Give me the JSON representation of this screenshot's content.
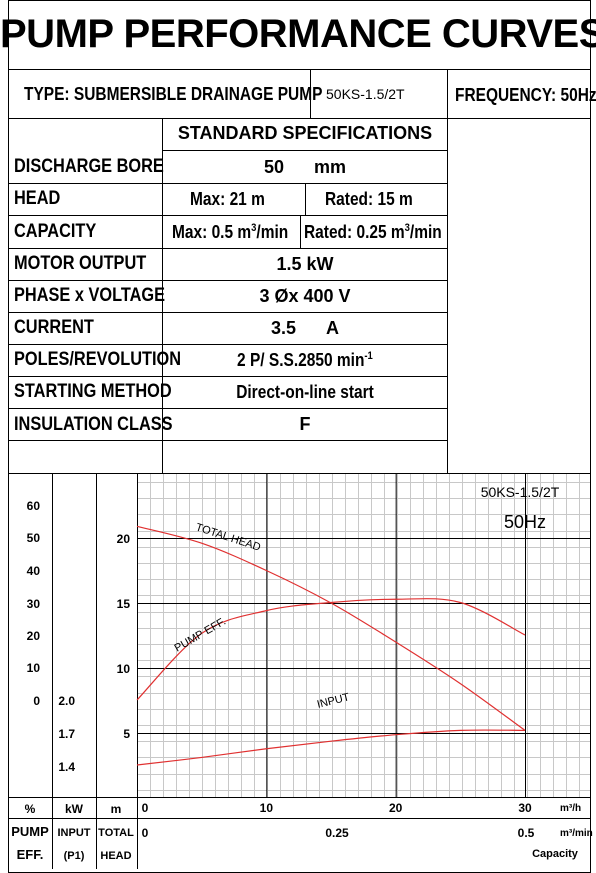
{
  "title": "PUMP PERFORMANCE CURVES",
  "type_label": "TYPE: SUBMERSIBLE  DRAINAGE  PUMP",
  "model": "50KS-1.5/2T",
  "frequency": "FREQUENCY: 50Hz",
  "spec_header": "STANDARD SPECIFICATIONS",
  "specs": {
    "discharge_bore": {
      "label": "DISCHARGE BORE",
      "value": "50",
      "unit": "mm"
    },
    "head": {
      "label": "HEAD",
      "max": "Max: 21 m",
      "rated": "Rated: 15 m"
    },
    "capacity": {
      "label": "CAPACITY",
      "max": "Max: 0.5 m",
      "max_sup": "3",
      "max_suffix": "/min",
      "rated": "Rated: 0.25 m",
      "rated_sup": "3",
      "rated_suffix": "/min"
    },
    "motor_output": {
      "label": "MOTOR OUTPUT",
      "value": "1.5  kW"
    },
    "phase_voltage": {
      "label": "PHASE x VOLTAGE",
      "value": "3 Øx 400  V"
    },
    "current": {
      "label": "CURRENT",
      "value": "3.5",
      "unit": "A"
    },
    "poles": {
      "label": "POLES/REVOLUTION",
      "value": "2 P/ S.S.2850 min",
      "sup": "-1"
    },
    "starting": {
      "label": "STARTING METHOD",
      "value": "Direct-on-line start"
    },
    "insulation": {
      "label": "INSULATION CLASS",
      "value": "F"
    }
  },
  "chart_data": {
    "type": "line",
    "model_label": "50KS-1.5/2T",
    "freq_label": "50Hz",
    "x_ticks_m3h": [
      "0",
      "10",
      "20",
      "30"
    ],
    "x_unit_m3h": "m³/h",
    "x_ticks_m3min": [
      "0",
      "0.25",
      "0.5"
    ],
    "x_unit_m3min": "m³/min",
    "x_axis_caption": "Capacity",
    "eff_ticks": [
      "60",
      "50",
      "40",
      "30",
      "20",
      "10",
      "0"
    ],
    "input_ticks": [
      "2.0",
      "1.7",
      "1.4"
    ],
    "head_ticks": [
      "20",
      "15",
      "10",
      "5"
    ],
    "col_units": {
      "eff": "%",
      "input": "kW",
      "head": "m"
    },
    "col_names": {
      "eff_line1": "PUMP",
      "eff_line2": "EFF.",
      "input_line1": "INPUT",
      "input_line2": "(P1)",
      "head_line1": "TOTAL",
      "head_line2": "HEAD"
    },
    "series": [
      {
        "name": "TOTAL HEAD",
        "axis": "head_m",
        "color": "#e03030",
        "x": [
          0,
          5,
          10,
          15,
          20,
          25,
          30
        ],
        "y": [
          20.9,
          19.6,
          17.5,
          15.0,
          12.0,
          8.8,
          5.2
        ]
      },
      {
        "name": "PUMP EFF.",
        "axis": "eff_pct",
        "color": "#e03030",
        "x": [
          0,
          5,
          10,
          15,
          20,
          25,
          30
        ],
        "y": [
          0,
          20.5,
          27.5,
          30.0,
          31.0,
          30.0,
          20.0
        ]
      },
      {
        "name": "INPUT",
        "axis": "input_kw",
        "color": "#e03030",
        "x": [
          0,
          5,
          10,
          15,
          20,
          25,
          30
        ],
        "y": [
          1.4,
          1.47,
          1.55,
          1.62,
          1.68,
          1.72,
          1.72
        ]
      }
    ]
  },
  "colors": {
    "curve": "#e03030",
    "grid": "#c8c8c8",
    "border": "#000000"
  }
}
